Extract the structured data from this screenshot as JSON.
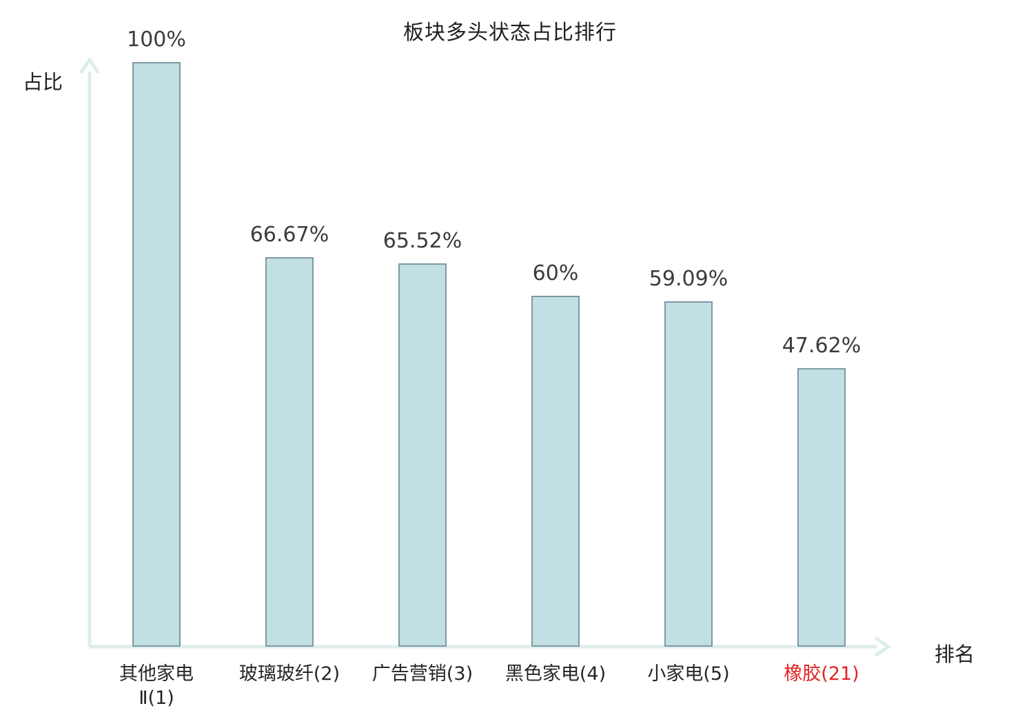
{
  "chart_data": {
    "type": "bar",
    "title": "板块多头状态占比排行",
    "xlabel": "排名",
    "ylabel": "占比",
    "ylim": [
      0,
      100
    ],
    "grid": false,
    "legend": "none",
    "categories": [
      "其他家电Ⅱ(1)",
      "玻璃玻纤(2)",
      "广告营销(3)",
      "黑色家电(4)",
      "小家电(5)",
      "橡胶(21)"
    ],
    "category_lines": [
      [
        "其他家电",
        "Ⅱ(1)"
      ],
      [
        "玻璃玻纤(2)"
      ],
      [
        "广告营销(3)"
      ],
      [
        "黑色家电(4)"
      ],
      [
        "小家电(5)"
      ],
      [
        "橡胶(21)"
      ]
    ],
    "values": [
      100,
      66.67,
      65.52,
      60,
      59.09,
      47.62
    ],
    "value_labels": [
      "100%",
      "66.67%",
      "65.52%",
      "60%",
      "59.09%",
      "47.62%"
    ],
    "ranks": [
      1,
      2,
      3,
      4,
      5,
      21
    ],
    "colors": {
      "bar_fill": "#c2e0e4",
      "bar_border": "#7e98a3",
      "axis": "#ddeeea",
      "title_text": "#1f1f1f",
      "value_label_text": "#3c3c3c",
      "category_text": "#262626",
      "highlight_category_text": "#e32222"
    },
    "category_text_colors": [
      "#262626",
      "#262626",
      "#262626",
      "#262626",
      "#262626",
      "#e32222"
    ]
  }
}
